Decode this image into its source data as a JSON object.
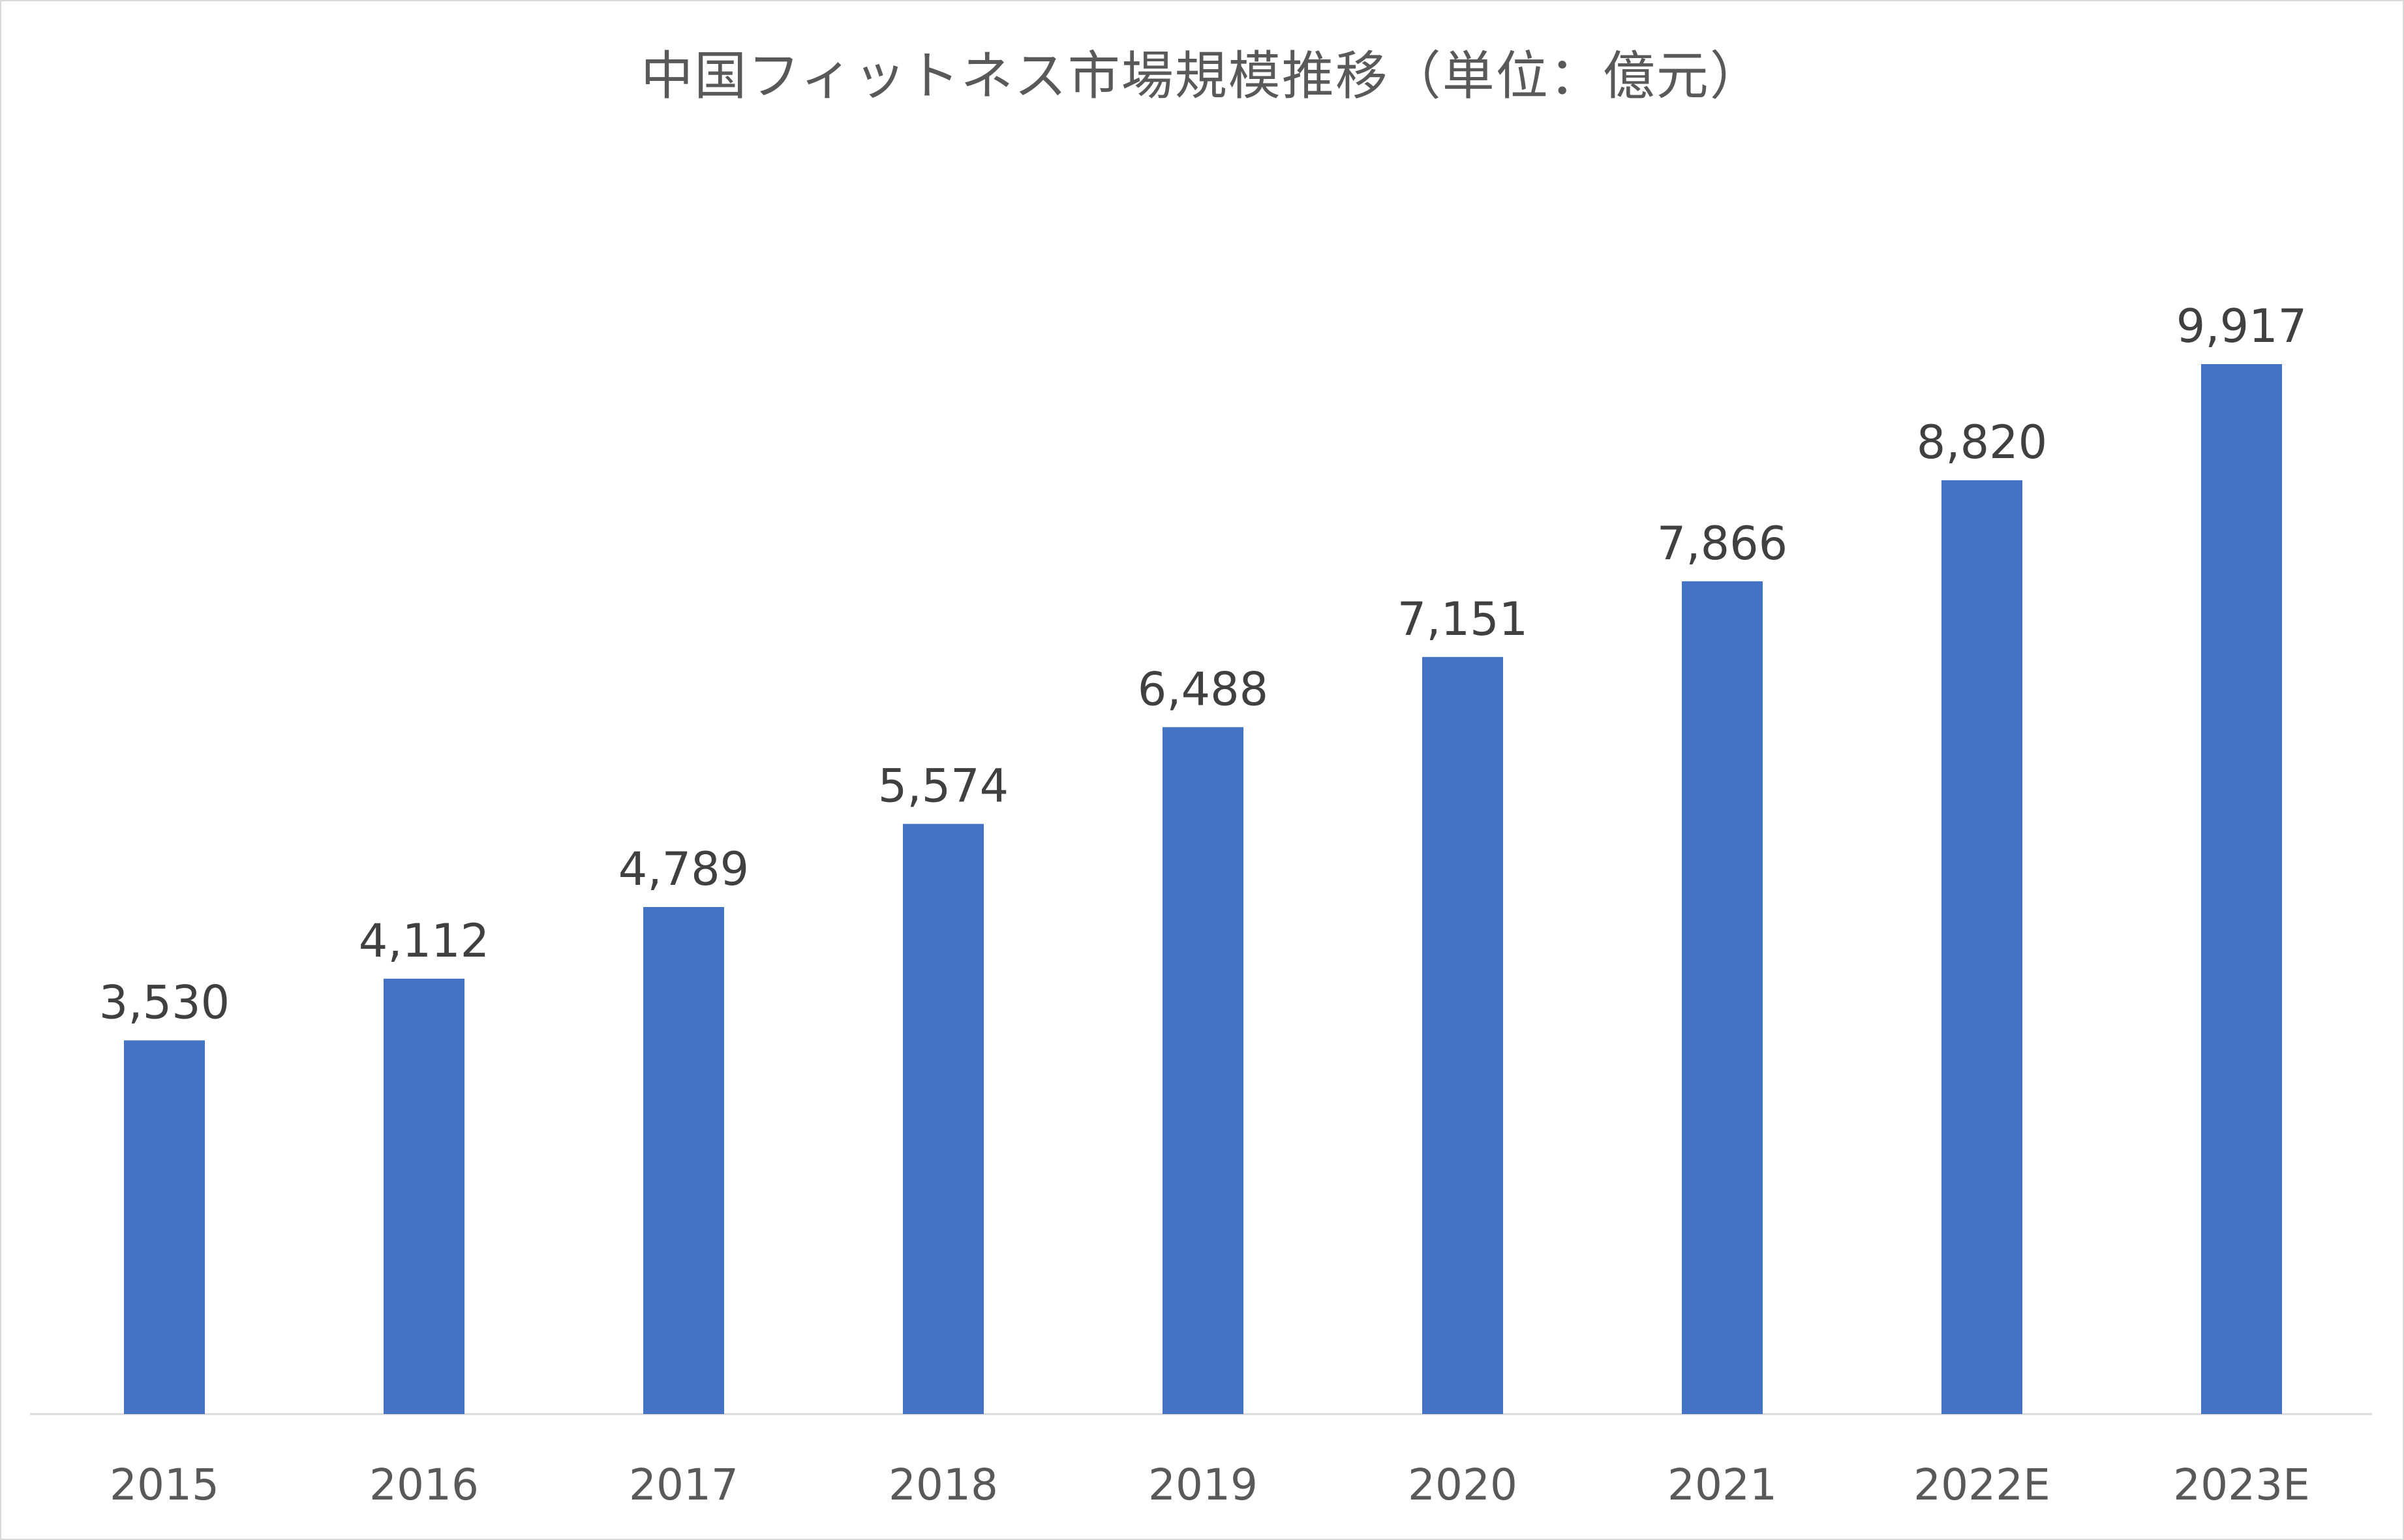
{
  "chart_data": {
    "type": "bar",
    "title": "中国フィットネス市場規模推移（単位：億元）",
    "categories": [
      "2015",
      "2016",
      "2017",
      "2018",
      "2019",
      "2020",
      "2021",
      "2022E",
      "2023E"
    ],
    "values": [
      3530,
      4112,
      4789,
      5574,
      6488,
      7151,
      7866,
      8820,
      9917
    ],
    "data_labels": [
      "3,530",
      "4,112",
      "4,789",
      "5,574",
      "6,488",
      "7,151",
      "7,866",
      "8,820",
      "9,917"
    ],
    "ylim": [
      0,
      12000
    ],
    "grid": false,
    "legend": "none",
    "bar_color": "#4472c4",
    "axis_color": "#d9d9d9"
  }
}
